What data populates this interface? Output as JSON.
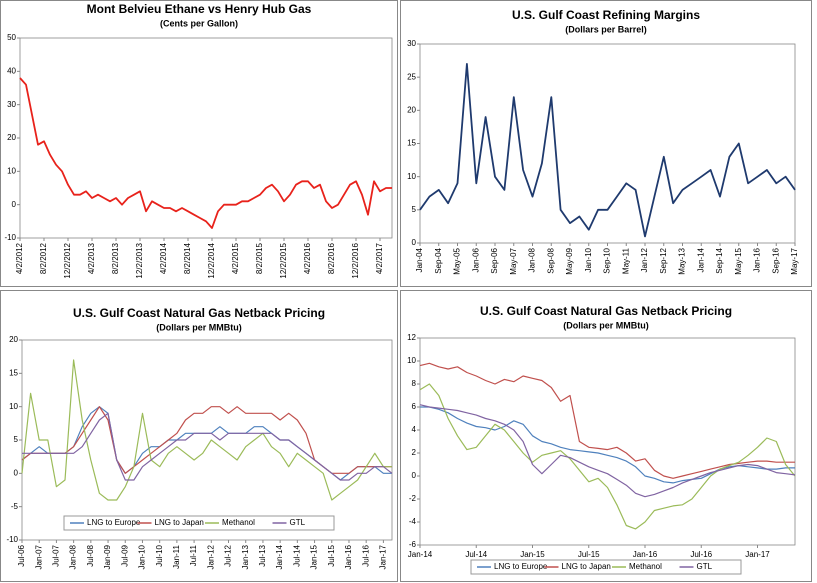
{
  "chart_data": [
    {
      "type": "line",
      "title": "Mont Belvieu Ethane vs Henry Hub Gas",
      "subtitle": "(Cents per Gallon)",
      "color": "#e8221b",
      "categories": [
        "4/2/2012",
        null,
        null,
        null,
        "8/2/2012",
        null,
        null,
        null,
        "12/2/2012",
        null,
        null,
        null,
        "4/2/2013",
        null,
        null,
        null,
        "8/2/2013",
        null,
        null,
        null,
        "12/2/2013",
        null,
        null,
        null,
        "4/2/2014",
        null,
        null,
        null,
        "8/2/2014",
        null,
        null,
        null,
        "12/2/2014",
        null,
        null,
        null,
        "4/2/2015",
        null,
        null,
        null,
        "8/2/2015",
        null,
        null,
        null,
        "12/2/2015",
        null,
        null,
        null,
        "4/2/2016",
        null,
        null,
        null,
        "8/2/2016",
        null,
        null,
        null,
        "12/2/2016",
        null,
        null,
        null,
        "4/2/2017",
        null,
        null
      ],
      "values": [
        38,
        36,
        27,
        18,
        19,
        15,
        12,
        10,
        6,
        3,
        3,
        4,
        2,
        3,
        2,
        1,
        2,
        0,
        2,
        3,
        4,
        -2,
        1,
        0,
        -1,
        -1,
        -2,
        -1,
        -2,
        -3,
        -4,
        -5,
        -7,
        -2,
        0,
        0,
        0,
        1,
        1,
        2,
        3,
        5,
        6,
        4,
        1,
        3,
        6,
        7,
        7,
        5,
        6,
        1,
        -1,
        0,
        3,
        6,
        7,
        3,
        -3,
        7,
        4,
        5,
        5
      ],
      "ylim": [
        -10,
        50
      ],
      "yticks": [
        -10,
        0,
        10,
        20,
        30,
        40,
        50
      ]
    },
    {
      "type": "line",
      "title": "U.S. Gulf Coast Refining Margins",
      "subtitle": "(Dollars per Barrel)",
      "color": "#1f3a6e",
      "categories": [
        "Jan-04",
        null,
        "Sep-04",
        null,
        "May-05",
        null,
        "Jan-06",
        null,
        "Sep-06",
        null,
        "May-07",
        null,
        "Jan-08",
        null,
        "Sep-08",
        null,
        "May-09",
        null,
        "Jan-10",
        null,
        "Sep-10",
        null,
        "May-11",
        null,
        "Jan-12",
        null,
        "Sep-12",
        null,
        "May-13",
        null,
        "Jan-14",
        null,
        "Sep-14",
        null,
        "May-15",
        null,
        "Jan-16",
        null,
        "Sep-16",
        null,
        "May-17"
      ],
      "values": [
        5,
        7,
        8,
        6,
        9,
        27,
        9,
        19,
        10,
        8,
        22,
        11,
        7,
        12,
        22,
        5,
        3,
        4,
        2,
        5,
        5,
        7,
        9,
        8,
        1,
        7,
        13,
        6,
        8,
        9,
        10,
        11,
        7,
        13,
        15,
        9,
        10,
        11,
        9,
        10,
        8
      ],
      "ylim": [
        0,
        30
      ],
      "yticks": [
        0,
        5,
        10,
        15,
        20,
        25,
        30
      ]
    },
    {
      "type": "line",
      "title": "U.S. Gulf Coast Natural Gas Netback Pricing",
      "subtitle": "(Dollars per MMBtu)",
      "legend": "bottom",
      "categories": [
        "Jul-06",
        null,
        "Jan-07",
        null,
        "Jul-07",
        null,
        "Jan-08",
        null,
        "Jul-08",
        null,
        "Jan-09",
        null,
        "Jul-09",
        null,
        "Jan-10",
        null,
        "Jul-10",
        null,
        "Jan-11",
        null,
        "Jul-11",
        null,
        "Jan-12",
        null,
        "Jul-12",
        null,
        "Jan-13",
        null,
        "Jul-13",
        null,
        "Jan-14",
        null,
        "Jul-14",
        null,
        "Jan-15",
        null,
        "Jul-15",
        null,
        "Jan-16",
        null,
        "Jul-16",
        null,
        "Jan-17",
        null
      ],
      "series": [
        {
          "name": "LNG to Europe",
          "color": "#4f81bd",
          "values": [
            2,
            3,
            4,
            3,
            3,
            3,
            4,
            7,
            9,
            10,
            9,
            2,
            0,
            1,
            3,
            4,
            4,
            5,
            5,
            6,
            6,
            6,
            6,
            7,
            6,
            6,
            6,
            7,
            7,
            6,
            5,
            5,
            4,
            3,
            2,
            1,
            0,
            -1,
            0,
            1,
            1,
            1,
            0,
            0
          ]
        },
        {
          "name": "LNG to Japan",
          "color": "#c0504d",
          "values": [
            2,
            3,
            3,
            3,
            3,
            3,
            4,
            6,
            8,
            10,
            8,
            2,
            0,
            1,
            2,
            3,
            4,
            5,
            6,
            8,
            9,
            9,
            10,
            10,
            9,
            10,
            9,
            9,
            9,
            9,
            8,
            9,
            8,
            6,
            2,
            1,
            0,
            0,
            0,
            1,
            1,
            1,
            1,
            1
          ]
        },
        {
          "name": "Methanol",
          "color": "#9bbb59",
          "values": [
            0,
            12,
            5,
            5,
            -2,
            -1,
            17,
            8,
            2,
            -3,
            -4,
            -4,
            -2,
            1,
            9,
            2,
            1,
            3,
            4,
            3,
            2,
            3,
            5,
            4,
            3,
            2,
            4,
            5,
            6,
            4,
            3,
            1,
            3,
            2,
            1,
            0,
            -4,
            -3,
            -2,
            -1,
            1,
            3,
            1,
            1
          ]
        },
        {
          "name": "GTL",
          "color": "#8064a2",
          "values": [
            3,
            3,
            3,
            3,
            3,
            3,
            3,
            4,
            6,
            8,
            9,
            2,
            -1,
            -1,
            1,
            2,
            3,
            4,
            5,
            5,
            6,
            6,
            6,
            5,
            6,
            6,
            6,
            6,
            6,
            6,
            5,
            5,
            4,
            3,
            2,
            1,
            0,
            -1,
            -1,
            0,
            0,
            1,
            1,
            0
          ]
        }
      ],
      "ylim": [
        -10,
        20
      ],
      "yticks": [
        -10,
        -5,
        0,
        5,
        10,
        15,
        20
      ]
    },
    {
      "type": "line",
      "title": "U.S. Gulf Coast Natural Gas Netback Pricing",
      "subtitle": "(Dollars per MMBtu)",
      "legend": "bottom",
      "categories": [
        "Jan-14",
        null,
        null,
        null,
        null,
        null,
        "Jul-14",
        null,
        null,
        null,
        null,
        null,
        "Jan-15",
        null,
        null,
        null,
        null,
        null,
        "Jul-15",
        null,
        null,
        null,
        null,
        null,
        "Jan-16",
        null,
        null,
        null,
        null,
        null,
        "Jul-16",
        null,
        null,
        null,
        null,
        null,
        "Jan-17",
        null,
        null,
        null,
        null
      ],
      "series": [
        {
          "name": "LNG to Europe",
          "color": "#4f81bd",
          "values": [
            6,
            6,
            5.8,
            5.5,
            5,
            4.6,
            4.3,
            4.2,
            4,
            4.3,
            4.8,
            4.5,
            3.5,
            3,
            2.8,
            2.5,
            2.3,
            2.2,
            2.1,
            2,
            1.8,
            1.6,
            1.3,
            0.8,
            0,
            -0.2,
            -0.5,
            -0.6,
            -0.4,
            -0.3,
            -0.2,
            0.2,
            0.6,
            0.8,
            0.9,
            0.8,
            0.7,
            0.6,
            0.6,
            0.7,
            0.7
          ]
        },
        {
          "name": "LNG to Japan",
          "color": "#c0504d",
          "values": [
            9.6,
            9.8,
            9.5,
            9.3,
            9.5,
            9,
            8.7,
            8.3,
            8,
            8.4,
            8.2,
            8.7,
            8.5,
            8.3,
            7.7,
            6.5,
            7,
            3,
            2.5,
            2.4,
            2.3,
            2.5,
            2,
            1.3,
            1.5,
            0.5,
            0,
            -0.2,
            0,
            0.2,
            0.4,
            0.6,
            0.8,
            1,
            1.1,
            1.2,
            1.3,
            1.3,
            1.2,
            1.2,
            1.2
          ]
        },
        {
          "name": "Methanol",
          "color": "#9bbb59",
          "values": [
            7.5,
            8,
            7,
            5,
            3.5,
            2.3,
            2.5,
            3.5,
            4.5,
            4,
            3,
            2,
            1.2,
            1.8,
            2,
            2.2,
            1.5,
            0.5,
            -0.5,
            -0.2,
            -1,
            -2.5,
            -4.3,
            -4.6,
            -4,
            -3,
            -2.8,
            -2.6,
            -2.5,
            -2,
            -1,
            0,
            0.6,
            0.9,
            1.2,
            1.8,
            2.5,
            3.3,
            3,
            1,
            0
          ]
        },
        {
          "name": "GTL",
          "color": "#8064a2",
          "values": [
            6.2,
            6,
            5.9,
            5.8,
            5.7,
            5.5,
            5.3,
            5,
            4.8,
            4.5,
            4,
            3,
            1,
            0.2,
            1,
            1.8,
            1.6,
            1.2,
            0.8,
            0.5,
            0.2,
            -0.3,
            -0.8,
            -1.5,
            -1.8,
            -1.6,
            -1.3,
            -1,
            -0.6,
            -0.3,
            0,
            0.3,
            0.5,
            0.7,
            0.9,
            1,
            0.9,
            0.6,
            0.3,
            0.2,
            0.1
          ]
        }
      ],
      "ylim": [
        -6,
        12
      ],
      "yticks": [
        -6,
        -4,
        -2,
        0,
        2,
        4,
        6,
        8,
        10,
        12
      ]
    }
  ]
}
